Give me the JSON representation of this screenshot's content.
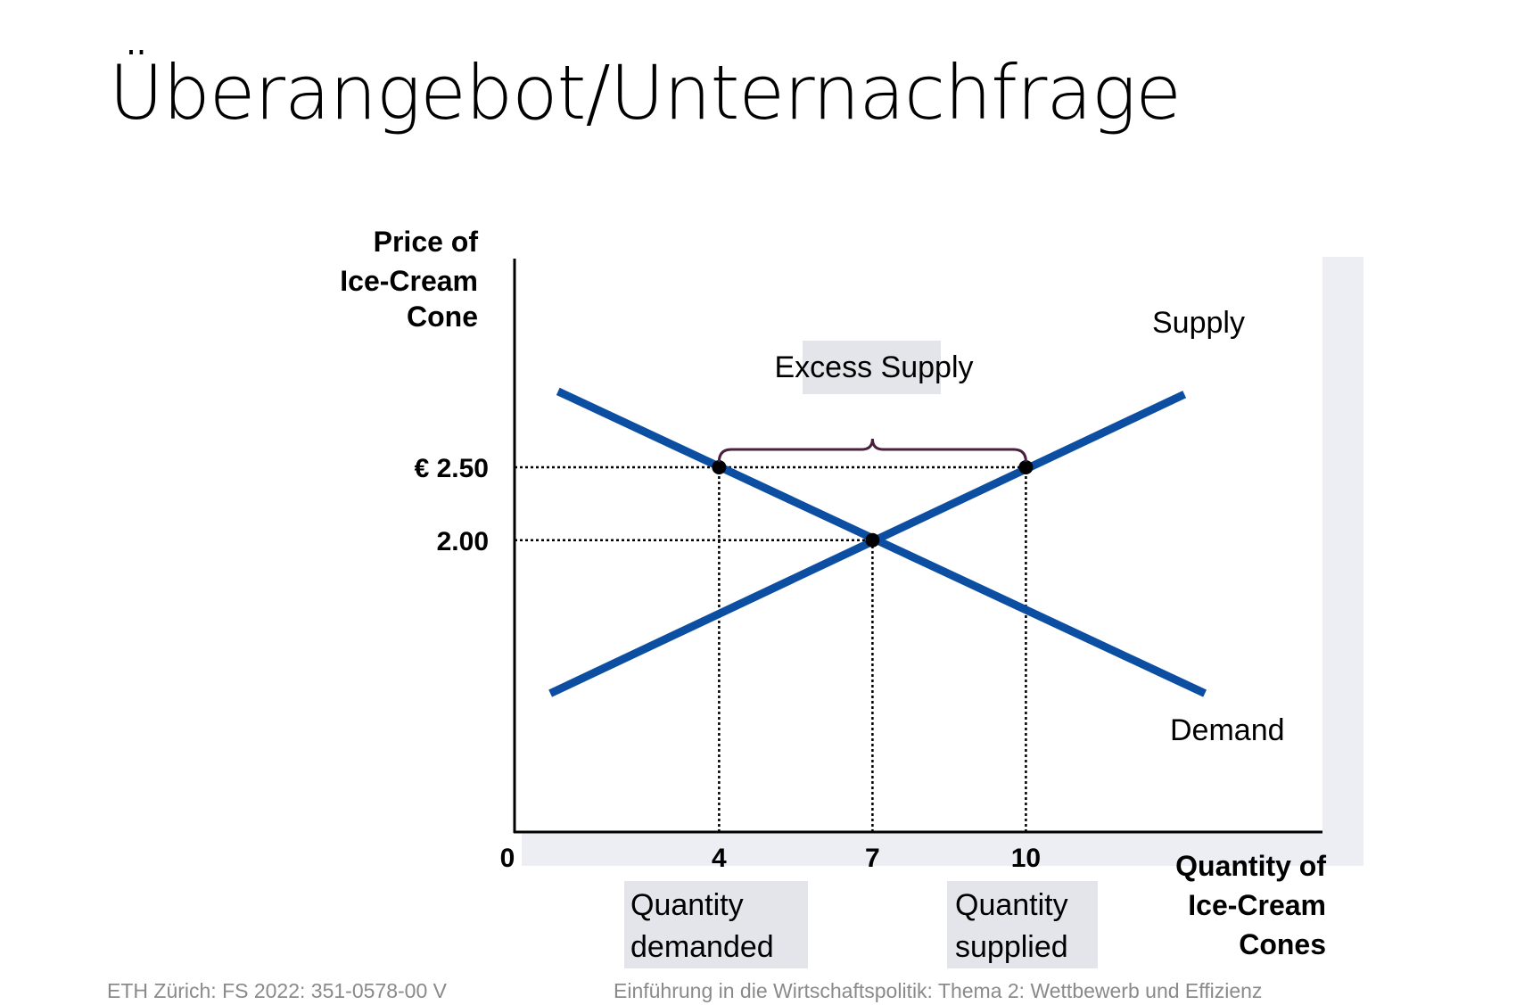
{
  "slide": {
    "title": "Überangebot/Unternachfrage",
    "footer_left": "ETH Zürich: FS 2022: 351-0578-00 V",
    "footer_right": "Einführung in die Wirtschaftspolitik: Thema 2: Wettbewerb und Effizienz"
  },
  "chart_data": {
    "type": "line",
    "ylabel": [
      "Price of",
      "Ice-Cream",
      "Cone"
    ],
    "xlabel": [
      "Quantity of",
      "Ice-Cream",
      "Cones"
    ],
    "origin_label": "0",
    "xlim": [
      0,
      15.8
    ],
    "ylim": [
      0,
      3.93
    ],
    "x_ticks": [
      {
        "value": 4,
        "label": "4"
      },
      {
        "value": 7,
        "label": "7"
      },
      {
        "value": 10,
        "label": "10"
      }
    ],
    "y_ticks": [
      {
        "value": 2.5,
        "label": "€ 2.50"
      },
      {
        "value": 2.0,
        "label": "2.00"
      }
    ],
    "series": [
      {
        "name": "Supply",
        "points": [
          [
            0.7,
            0.95
          ],
          [
            13.1,
            3.0
          ]
        ],
        "color": "#0b4ea2"
      },
      {
        "name": "Demand",
        "points": [
          [
            0.85,
            3.02
          ],
          [
            13.5,
            0.95
          ]
        ],
        "color": "#0b4ea2"
      }
    ],
    "markers": [
      [
        4,
        2.5
      ],
      [
        10,
        2.5
      ],
      [
        7,
        2.0
      ]
    ],
    "guides": [
      {
        "type": "h",
        "y": 2.5,
        "x_to": 10
      },
      {
        "type": "h",
        "y": 2.0,
        "x_to": 7
      },
      {
        "type": "v",
        "x": 4,
        "y_to": 2.5
      },
      {
        "type": "v",
        "x": 7,
        "y_to": 2.0
      },
      {
        "type": "v",
        "x": 10,
        "y_to": 2.5
      }
    ],
    "brace": {
      "x_from": 4,
      "x_to": 10,
      "y": 2.5,
      "color": "#4a1f3f"
    },
    "annotations": {
      "excess_supply": "Excess Supply",
      "quantity_demanded": [
        "Quantity",
        "demanded"
      ],
      "quantity_supplied": [
        "Quantity",
        "supplied"
      ]
    }
  }
}
